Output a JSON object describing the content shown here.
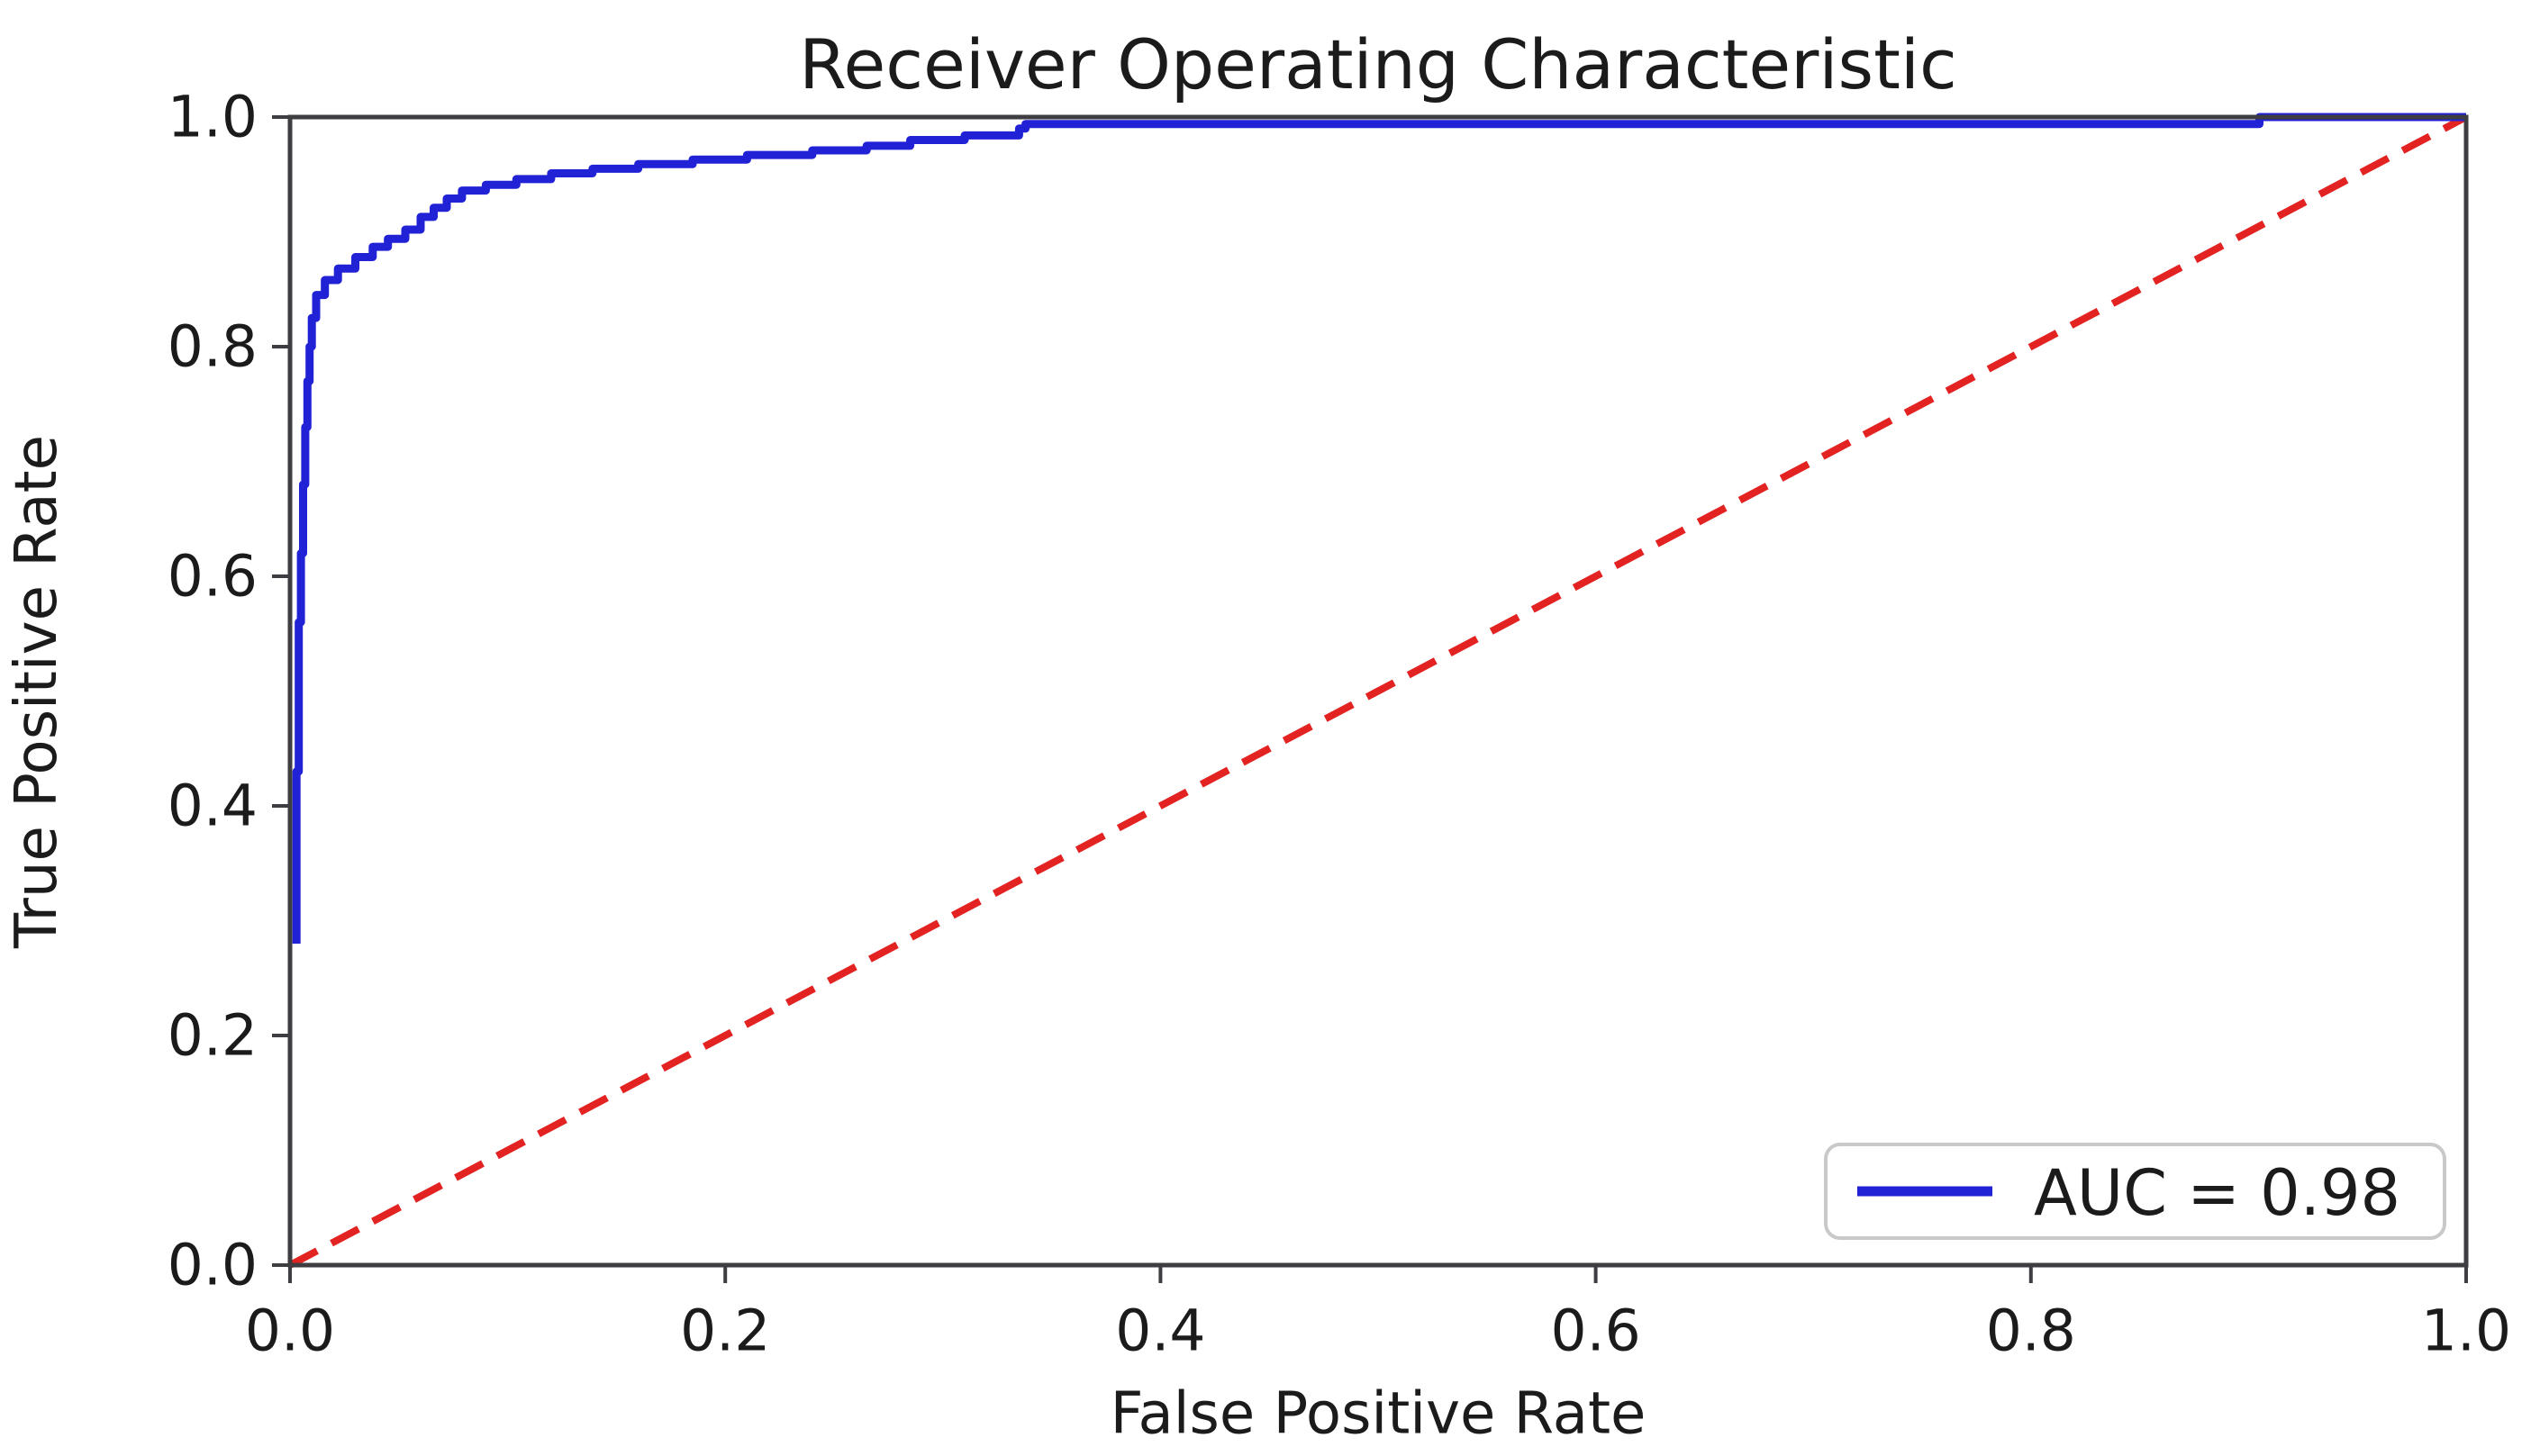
{
  "chart_data": {
    "type": "line",
    "title": "Receiver Operating Characteristic",
    "xlabel": "False Positive Rate",
    "ylabel": "True Positive Rate",
    "xlim": [
      0.0,
      1.0
    ],
    "ylim": [
      0.0,
      1.0
    ],
    "grid": false,
    "auc": 0.98,
    "xticks": {
      "values": [
        0.0,
        0.2,
        0.4,
        0.6,
        0.8,
        1.0
      ],
      "labels": [
        "0.0",
        "0.2",
        "0.4",
        "0.6",
        "0.8",
        "1.0"
      ]
    },
    "yticks": {
      "values": [
        0.0,
        0.2,
        0.4,
        0.6,
        0.8,
        1.0
      ],
      "labels": [
        "0.0",
        "0.2",
        "0.4",
        "0.6",
        "0.8",
        "1.0"
      ]
    },
    "legend": {
      "position": "lower right",
      "entries": [
        {
          "label": "AUC = 0.98",
          "series": "roc-curve"
        }
      ]
    },
    "series": [
      {
        "name": "chance-diagonal",
        "color": "#e32222",
        "style": "dashed",
        "width": 8,
        "dash": [
          34,
          18
        ],
        "points": [
          [
            0.0,
            0.0
          ],
          [
            1.0,
            1.0
          ]
        ]
      },
      {
        "name": "roc-curve",
        "color": "#2121d6",
        "style": "solid",
        "width": 9,
        "points": [
          [
            0.003,
            0.28
          ],
          [
            0.003,
            0.43
          ],
          [
            0.004,
            0.43
          ],
          [
            0.004,
            0.56
          ],
          [
            0.005,
            0.56
          ],
          [
            0.005,
            0.62
          ],
          [
            0.006,
            0.62
          ],
          [
            0.006,
            0.68
          ],
          [
            0.007,
            0.68
          ],
          [
            0.007,
            0.73
          ],
          [
            0.008,
            0.73
          ],
          [
            0.008,
            0.77
          ],
          [
            0.009,
            0.77
          ],
          [
            0.009,
            0.8
          ],
          [
            0.01,
            0.8
          ],
          [
            0.01,
            0.825
          ],
          [
            0.012,
            0.825
          ],
          [
            0.012,
            0.845
          ],
          [
            0.016,
            0.845
          ],
          [
            0.016,
            0.858
          ],
          [
            0.022,
            0.858
          ],
          [
            0.022,
            0.868
          ],
          [
            0.03,
            0.868
          ],
          [
            0.03,
            0.878
          ],
          [
            0.038,
            0.878
          ],
          [
            0.038,
            0.887
          ],
          [
            0.045,
            0.887
          ],
          [
            0.045,
            0.894
          ],
          [
            0.053,
            0.894
          ],
          [
            0.053,
            0.902
          ],
          [
            0.06,
            0.902
          ],
          [
            0.06,
            0.913
          ],
          [
            0.066,
            0.913
          ],
          [
            0.066,
            0.921
          ],
          [
            0.072,
            0.921
          ],
          [
            0.072,
            0.929
          ],
          [
            0.079,
            0.929
          ],
          [
            0.079,
            0.936
          ],
          [
            0.09,
            0.936
          ],
          [
            0.09,
            0.941
          ],
          [
            0.104,
            0.941
          ],
          [
            0.104,
            0.946
          ],
          [
            0.12,
            0.946
          ],
          [
            0.12,
            0.951
          ],
          [
            0.139,
            0.951
          ],
          [
            0.139,
            0.955
          ],
          [
            0.16,
            0.955
          ],
          [
            0.16,
            0.959
          ],
          [
            0.185,
            0.959
          ],
          [
            0.185,
            0.963
          ],
          [
            0.21,
            0.963
          ],
          [
            0.21,
            0.967
          ],
          [
            0.24,
            0.967
          ],
          [
            0.24,
            0.971
          ],
          [
            0.265,
            0.971
          ],
          [
            0.265,
            0.975
          ],
          [
            0.285,
            0.975
          ],
          [
            0.285,
            0.98
          ],
          [
            0.31,
            0.98
          ],
          [
            0.31,
            0.984
          ],
          [
            0.335,
            0.984
          ],
          [
            0.335,
            0.99
          ],
          [
            0.338,
            0.99
          ],
          [
            0.338,
            0.994
          ],
          [
            0.905,
            0.994
          ],
          [
            0.905,
            1.0
          ],
          [
            1.0,
            1.0
          ]
        ]
      }
    ],
    "colors": {
      "axis": "#3d3d42",
      "text": "#1b1b1b",
      "background": "#ffffff",
      "legend_border": "#c9c9c9"
    }
  }
}
